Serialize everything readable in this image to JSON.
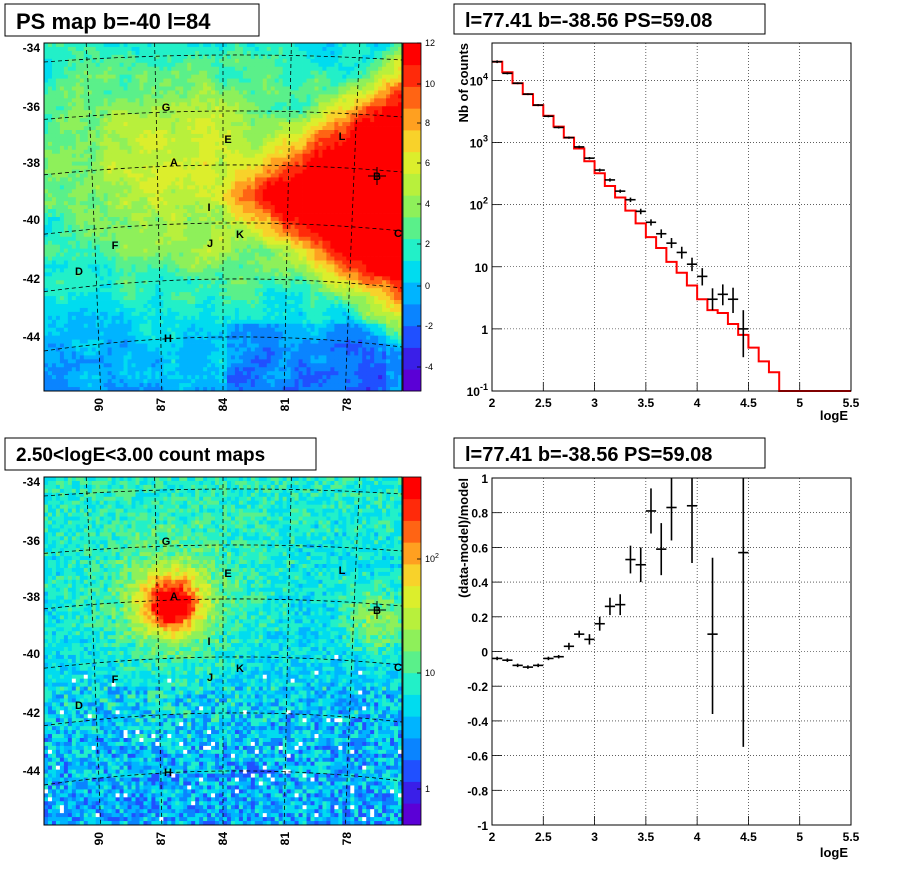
{
  "colors": {
    "model_line": "#ff0000",
    "data_points": "#000000",
    "grid": "#000000",
    "palette": [
      "#5b00d6",
      "#3a1fe8",
      "#2050ff",
      "#0a84ff",
      "#00b4ff",
      "#00dcef",
      "#22f0c8",
      "#5af08a",
      "#8ef05a",
      "#b8f03c",
      "#dcee2c",
      "#f8d22a",
      "#ffa020",
      "#ff6414",
      "#ff2a0a",
      "#ff0000"
    ]
  },
  "chart_data": [
    {
      "type": "heatmap",
      "title": "PS map b=-40 l=84",
      "x_ticks": [
        "90",
        "87",
        "84",
        "81",
        "78"
      ],
      "y_ticks": [
        "-34",
        "-36",
        "-38",
        "-40",
        "-42",
        "-44"
      ],
      "colorbar_ticks": [
        "12",
        "10",
        "8",
        "6",
        "4",
        "2",
        "0",
        "-2",
        "-4"
      ],
      "colorbar_range": [
        -5,
        12
      ],
      "sources": [
        {
          "label": "G"
        },
        {
          "label": "E"
        },
        {
          "label": "L"
        },
        {
          "label": "A"
        },
        {
          "label": "B"
        },
        {
          "label": "I"
        },
        {
          "label": "F"
        },
        {
          "label": "J"
        },
        {
          "label": "K"
        },
        {
          "label": "C"
        },
        {
          "label": "D"
        },
        {
          "label": "H"
        }
      ]
    },
    {
      "type": "line",
      "title": "l=77.41 b=-38.56 PS=59.08",
      "xlabel": "logE",
      "ylabel": "Nb of counts",
      "x_ticks": [
        "2",
        "2.5",
        "3",
        "3.5",
        "4",
        "4.5",
        "5",
        "5.5"
      ],
      "y_ticks": [
        "10^4",
        "10^3",
        "10^2",
        "10",
        "1",
        "10^-1"
      ],
      "xlim": [
        2,
        5.5
      ],
      "ylim": [
        0.1,
        40000
      ],
      "log_y": true,
      "grid": true,
      "series": [
        {
          "role": "model",
          "bin_edges": [
            2.0,
            2.1,
            2.2,
            2.3,
            2.4,
            2.5,
            2.6,
            2.7,
            2.8,
            2.9,
            3.0,
            3.1,
            3.2,
            3.3,
            3.4,
            3.5,
            3.6,
            3.7,
            3.8,
            3.9,
            4.0,
            4.1,
            4.2,
            4.3,
            4.4,
            4.5,
            4.6,
            4.7,
            4.8,
            4.9,
            5.0,
            5.1,
            5.2,
            5.3,
            5.4,
            5.5
          ],
          "values": [
            20000,
            13500,
            9000,
            6000,
            4000,
            2700,
            1800,
            1200,
            800,
            500,
            320,
            200,
            130,
            80,
            50,
            30,
            20,
            12,
            8,
            5,
            3,
            2,
            1.8,
            1.2,
            0.8,
            0.5,
            0.3,
            0.2,
            0.1,
            0.1,
            0.1,
            0.1,
            0.1,
            0.1,
            0.1
          ]
        },
        {
          "role": "data",
          "points": [
            {
              "x": 2.05,
              "y": 20000,
              "lo": 19000,
              "hi": 21000
            },
            {
              "x": 2.15,
              "y": 13000,
              "lo": 12500,
              "hi": 13500
            },
            {
              "x": 2.25,
              "y": 9000,
              "lo": 8700,
              "hi": 9300
            },
            {
              "x": 2.35,
              "y": 6000,
              "lo": 5800,
              "hi": 6200
            },
            {
              "x": 2.45,
              "y": 4000,
              "lo": 3850,
              "hi": 4150
            },
            {
              "x": 2.55,
              "y": 2650,
              "lo": 2550,
              "hi": 2750
            },
            {
              "x": 2.65,
              "y": 1750,
              "lo": 1680,
              "hi": 1820
            },
            {
              "x": 2.75,
              "y": 1200,
              "lo": 1150,
              "hi": 1250
            },
            {
              "x": 2.85,
              "y": 850,
              "lo": 810,
              "hi": 890
            },
            {
              "x": 2.95,
              "y": 560,
              "lo": 535,
              "hi": 585
            },
            {
              "x": 3.05,
              "y": 360,
              "lo": 340,
              "hi": 380
            },
            {
              "x": 3.15,
              "y": 250,
              "lo": 235,
              "hi": 265
            },
            {
              "x": 3.25,
              "y": 165,
              "lo": 155,
              "hi": 175
            },
            {
              "x": 3.35,
              "y": 120,
              "lo": 110,
              "hi": 130
            },
            {
              "x": 3.45,
              "y": 78,
              "lo": 70,
              "hi": 86
            },
            {
              "x": 3.55,
              "y": 52,
              "lo": 46,
              "hi": 58
            },
            {
              "x": 3.65,
              "y": 34,
              "lo": 29,
              "hi": 40
            },
            {
              "x": 3.75,
              "y": 24,
              "lo": 20,
              "hi": 29
            },
            {
              "x": 3.85,
              "y": 17,
              "lo": 13.5,
              "hi": 21
            },
            {
              "x": 3.95,
              "y": 11,
              "lo": 8.5,
              "hi": 14
            },
            {
              "x": 4.05,
              "y": 7,
              "lo": 5,
              "hi": 9.5
            },
            {
              "x": 4.15,
              "y": 3,
              "lo": 2,
              "hi": 4.5
            },
            {
              "x": 4.25,
              "y": 3.6,
              "lo": 2.4,
              "hi": 5.2
            },
            {
              "x": 4.35,
              "y": 3,
              "lo": 1.8,
              "hi": 4.6
            },
            {
              "x": 4.45,
              "y": 1,
              "lo": 0.35,
              "hi": 2
            }
          ]
        }
      ]
    },
    {
      "type": "heatmap",
      "title": "2.50<logE<3.00 count maps",
      "x_ticks": [
        "90",
        "87",
        "84",
        "81",
        "78"
      ],
      "y_ticks": [
        "-34",
        "-36",
        "-38",
        "-40",
        "-42",
        "-44"
      ],
      "colorbar_ticks": [
        "10^2",
        "10",
        "1"
      ],
      "colorbar_log": true,
      "sources": [
        {
          "label": "G"
        },
        {
          "label": "E"
        },
        {
          "label": "L"
        },
        {
          "label": "A"
        },
        {
          "label": "B"
        },
        {
          "label": "I"
        },
        {
          "label": "F"
        },
        {
          "label": "J"
        },
        {
          "label": "K"
        },
        {
          "label": "C"
        },
        {
          "label": "D"
        },
        {
          "label": "H"
        }
      ]
    },
    {
      "type": "scatter",
      "title": "l=77.41 b=-38.56 PS=59.08",
      "xlabel": "logE",
      "ylabel": "(data-model)/model",
      "x_ticks": [
        "2",
        "2.5",
        "3",
        "3.5",
        "4",
        "4.5",
        "5",
        "5.5"
      ],
      "y_ticks": [
        "1",
        "0.8",
        "0.6",
        "0.4",
        "0.2",
        "0",
        "-0.2",
        "-0.4",
        "-0.6",
        "-0.8",
        "-1"
      ],
      "xlim": [
        2,
        5.5
      ],
      "ylim": [
        -1,
        1
      ],
      "grid": true,
      "points": [
        {
          "x": 2.05,
          "y": -0.04,
          "lo": -0.05,
          "hi": -0.03
        },
        {
          "x": 2.15,
          "y": -0.05,
          "lo": -0.06,
          "hi": -0.04
        },
        {
          "x": 2.25,
          "y": -0.08,
          "lo": -0.09,
          "hi": -0.07
        },
        {
          "x": 2.35,
          "y": -0.09,
          "lo": -0.1,
          "hi": -0.08
        },
        {
          "x": 2.45,
          "y": -0.08,
          "lo": -0.09,
          "hi": -0.07
        },
        {
          "x": 2.55,
          "y": -0.04,
          "lo": -0.05,
          "hi": -0.03
        },
        {
          "x": 2.65,
          "y": -0.03,
          "lo": -0.04,
          "hi": -0.02
        },
        {
          "x": 2.75,
          "y": 0.03,
          "lo": 0.01,
          "hi": 0.05
        },
        {
          "x": 2.85,
          "y": 0.1,
          "lo": 0.08,
          "hi": 0.12
        },
        {
          "x": 2.95,
          "y": 0.07,
          "lo": 0.04,
          "hi": 0.1
        },
        {
          "x": 3.05,
          "y": 0.16,
          "lo": 0.12,
          "hi": 0.2
        },
        {
          "x": 3.15,
          "y": 0.26,
          "lo": 0.21,
          "hi": 0.31
        },
        {
          "x": 3.25,
          "y": 0.27,
          "lo": 0.21,
          "hi": 0.33
        },
        {
          "x": 3.35,
          "y": 0.53,
          "lo": 0.45,
          "hi": 0.61
        },
        {
          "x": 3.45,
          "y": 0.5,
          "lo": 0.4,
          "hi": 0.6
        },
        {
          "x": 3.55,
          "y": 0.81,
          "lo": 0.68,
          "hi": 0.94
        },
        {
          "x": 3.65,
          "y": 0.59,
          "lo": 0.44,
          "hi": 0.74
        },
        {
          "x": 3.75,
          "y": 0.83,
          "lo": 0.64,
          "hi": 1.0
        },
        {
          "x": 3.95,
          "y": 0.84,
          "lo": 0.51,
          "hi": 1.0
        },
        {
          "x": 4.15,
          "y": 0.1,
          "lo": -0.36,
          "hi": 0.54
        },
        {
          "x": 4.45,
          "y": 0.57,
          "lo": -0.55,
          "hi": 1.0
        }
      ]
    }
  ]
}
